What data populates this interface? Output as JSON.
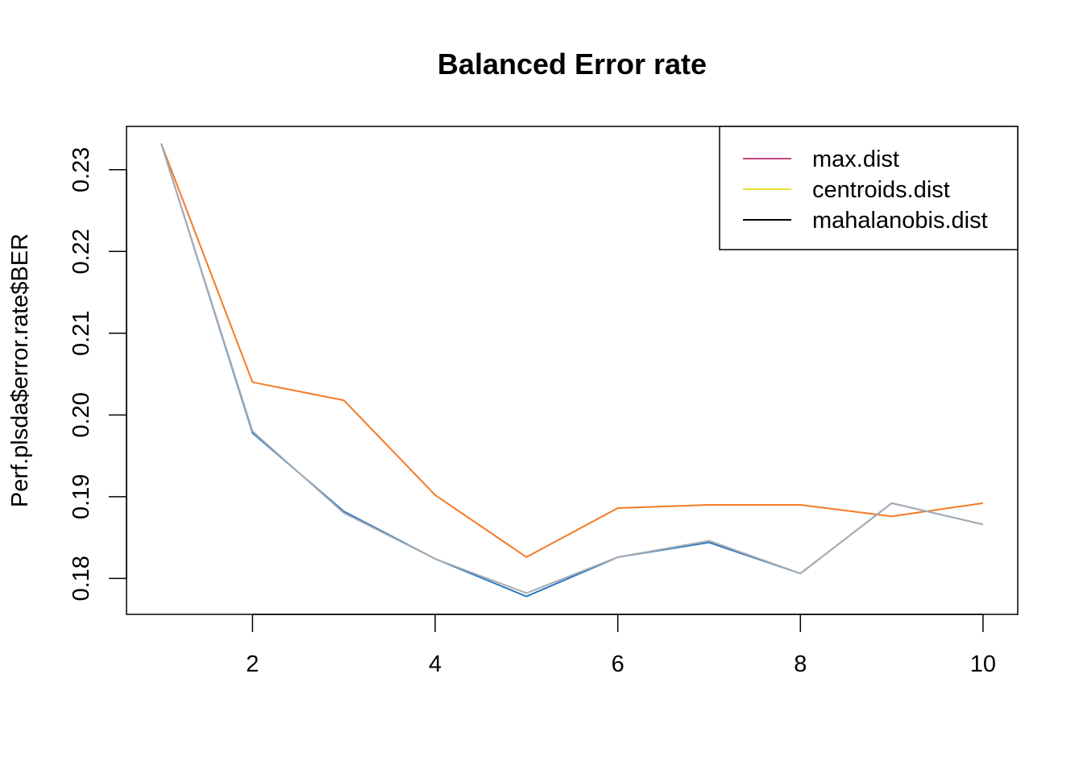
{
  "chart_data": {
    "type": "line",
    "title": "Balanced Error rate",
    "xlabel": "",
    "ylabel": "Perf.plsda$error.rate$BER",
    "x": [
      1,
      2,
      3,
      4,
      5,
      6,
      7,
      8,
      9,
      10
    ],
    "xlim": [
      0.62,
      10.38
    ],
    "ylim": [
      0.1756,
      0.2353
    ],
    "x_ticks": [
      2,
      4,
      6,
      8,
      10
    ],
    "y_ticks": [
      0.18,
      0.19,
      0.2,
      0.21,
      0.22,
      0.23
    ],
    "y_tick_labels": [
      "0.18",
      "0.19",
      "0.20",
      "0.21",
      "0.22",
      "0.23"
    ],
    "grid": false,
    "series": [
      {
        "color": "#f47a24",
        "values": [
          0.2332,
          0.204,
          0.2018,
          0.1902,
          0.1826,
          0.1886,
          0.189,
          0.189,
          0.1876,
          0.1892
        ]
      },
      {
        "color": "#2b78c2",
        "values": [
          0.2332,
          0.1978,
          0.1882,
          0.1824,
          0.1778,
          0.1826,
          0.1844,
          0.1806,
          0.1892,
          0.1866
        ]
      },
      {
        "color": "#a8adb2",
        "values": [
          0.2332,
          0.198,
          0.188,
          0.1824,
          0.1782,
          0.1826,
          0.1846,
          0.1806,
          0.1892,
          0.1866
        ]
      }
    ],
    "legend": {
      "position": "top-right",
      "entries": [
        {
          "label": "max.dist",
          "color": "#c2467c"
        },
        {
          "label": "centroids.dist",
          "color": "#e6e03a"
        },
        {
          "label": "mahalanobis.dist",
          "color": "#000000"
        }
      ]
    }
  }
}
